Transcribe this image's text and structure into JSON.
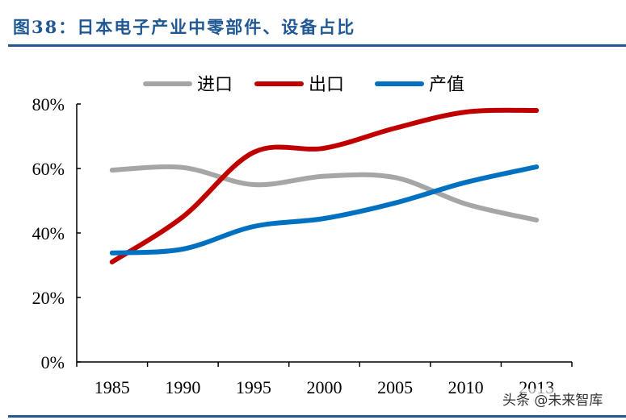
{
  "title": "图38：日本电子产业中零部件、设备占比",
  "watermark": "头条 @未来智库",
  "chart_data": {
    "type": "line",
    "title": "",
    "xlabel": "",
    "ylabel": "",
    "categories": [
      "1985",
      "1990",
      "1995",
      "2000",
      "2005",
      "2010",
      "2013"
    ],
    "ylim": [
      0,
      80
    ],
    "yticks": [
      "0%",
      "20%",
      "40%",
      "60%",
      "80%"
    ],
    "ytick_values": [
      0,
      20,
      40,
      60,
      80
    ],
    "grid": false,
    "legend": "top",
    "smooth": true,
    "series": [
      {
        "name": "进口",
        "color": "#a6a6a6",
        "values": [
          59.5,
          60.3,
          55,
          57.6,
          57.2,
          49,
          44
        ]
      },
      {
        "name": "出口",
        "color": "#c00000",
        "values": [
          31,
          45,
          65,
          66.3,
          72.5,
          77.5,
          78
        ]
      },
      {
        "name": "产值",
        "color": "#0070c0",
        "values": [
          33.8,
          35,
          42,
          44.5,
          49.3,
          55.7,
          60.5
        ]
      }
    ]
  }
}
